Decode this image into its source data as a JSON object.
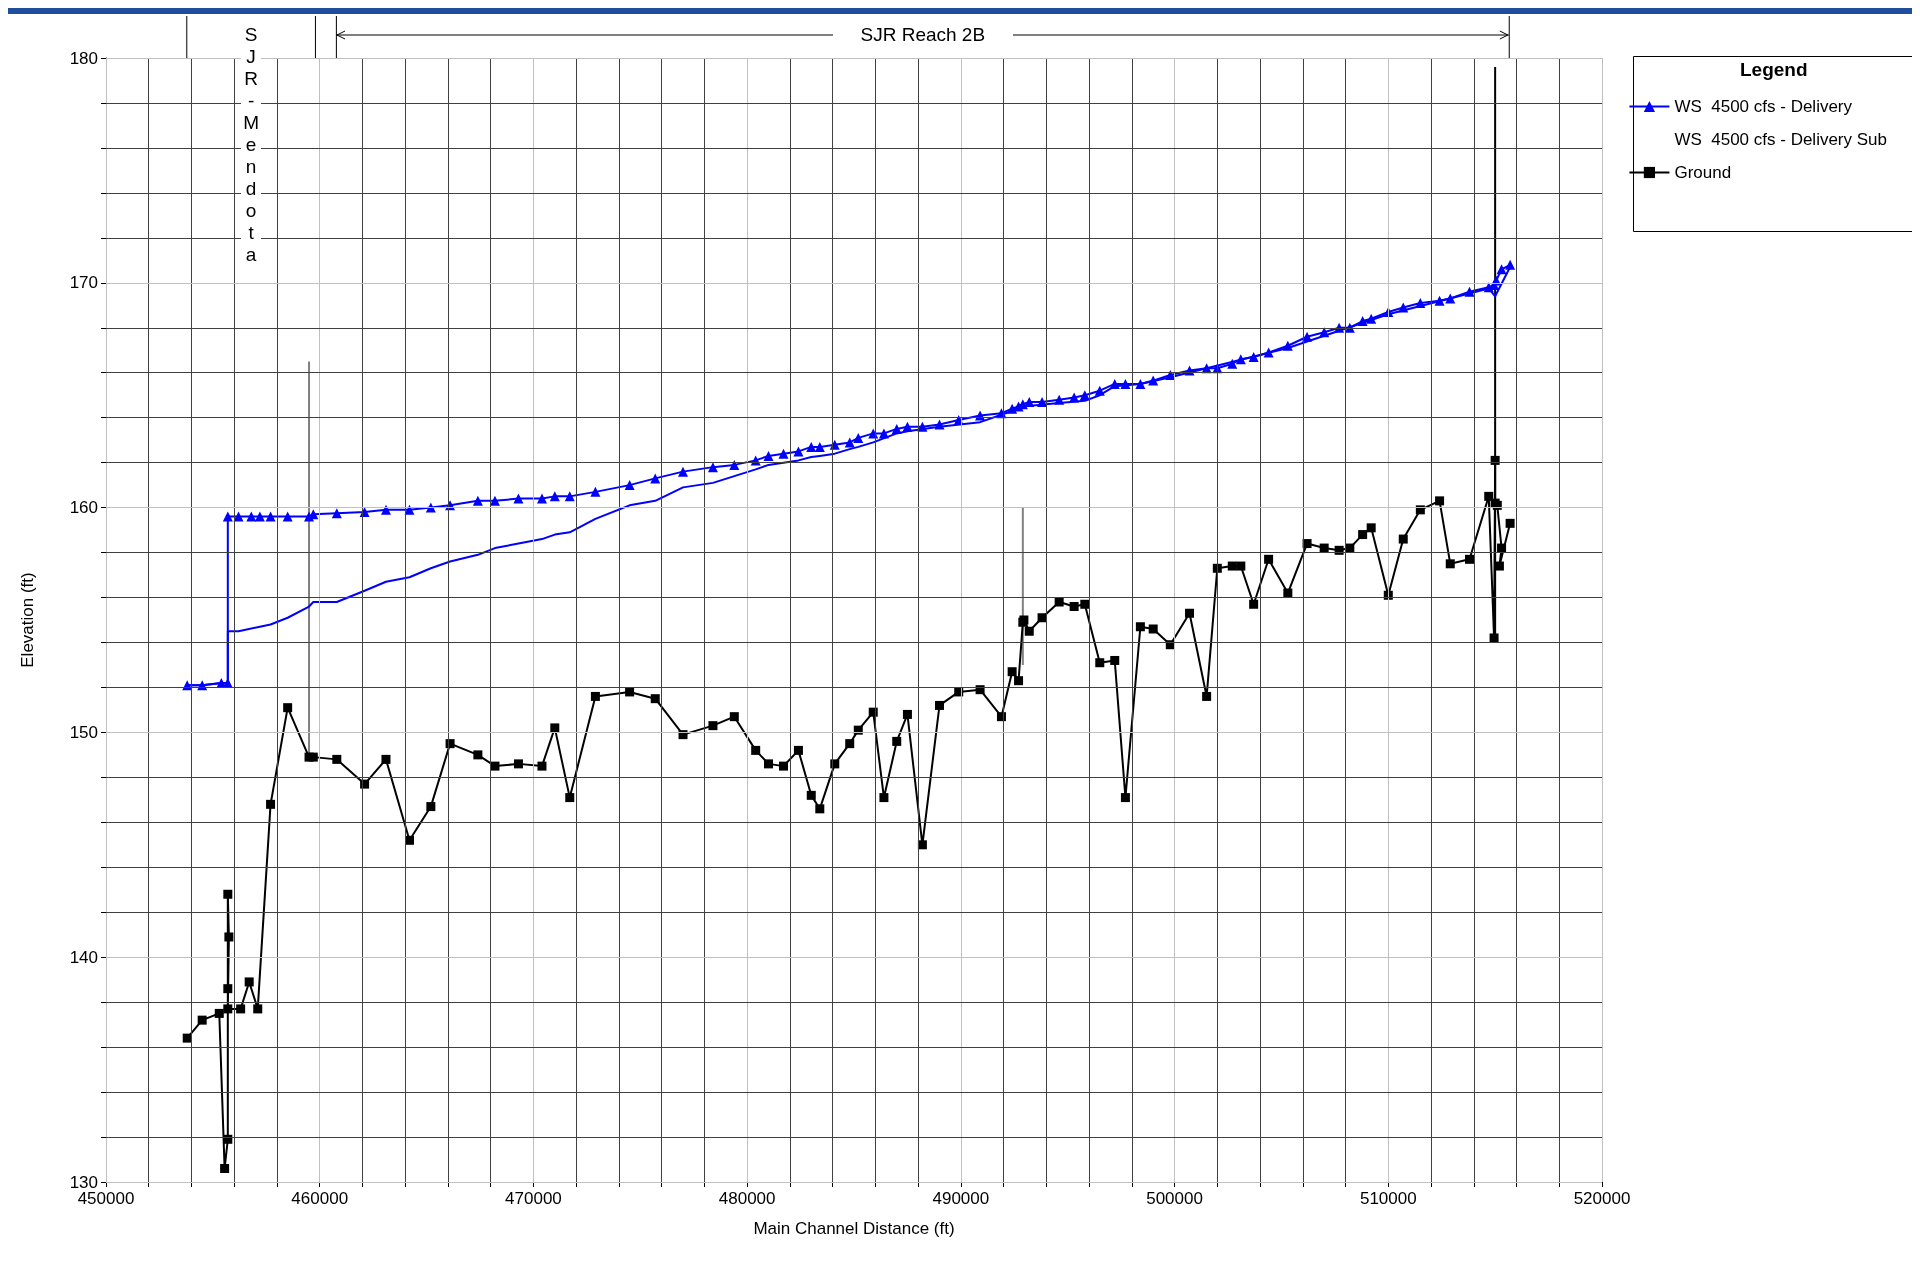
{
  "chart_data": {
    "type": "line",
    "xlabel": "Main Channel Distance (ft)",
    "ylabel": "Elevation (ft)",
    "legend_title": "Legend",
    "legend": "top right",
    "grid": true,
    "annotations": [
      "SJR-Mendota",
      "SJR Reach 2B"
    ],
    "xlim": [
      450000,
      520000
    ],
    "xticks": [
      450000,
      {
        "value": 452000,
        "label": null
      },
      {
        "value": 454000,
        "label": null
      },
      {
        "value": 456000,
        "label": null
      },
      {
        "value": 458000,
        "label": null
      },
      460000,
      {
        "value": 462000,
        "label": null
      },
      {
        "value": 464000,
        "label": null
      },
      {
        "value": 466000,
        "label": null
      },
      {
        "value": 468000,
        "label": null
      },
      470000,
      {
        "value": 472000,
        "label": null
      },
      {
        "value": 474000,
        "label": null
      },
      {
        "value": 476000,
        "label": null
      },
      {
        "value": 478000,
        "label": null
      },
      480000,
      {
        "value": 482000,
        "label": null
      },
      {
        "value": 484000,
        "label": null
      },
      {
        "value": 486000,
        "label": null
      },
      {
        "value": 488000,
        "label": null
      },
      490000,
      {
        "value": 492000,
        "label": null
      },
      {
        "value": 494000,
        "label": null
      },
      {
        "value": 496000,
        "label": null
      },
      {
        "value": 498000,
        "label": null
      },
      500000,
      {
        "value": 502000,
        "label": null
      },
      {
        "value": 504000,
        "label": null
      },
      {
        "value": 506000,
        "label": null
      },
      {
        "value": 508000,
        "label": null
      },
      510000,
      {
        "value": 512000,
        "label": null
      },
      {
        "value": 514000,
        "label": null
      },
      {
        "value": 516000,
        "label": null
      },
      {
        "value": 518000,
        "label": null
      },
      520000
    ],
    "ylim": [
      130,
      180
    ],
    "yticks": [
      130,
      {
        "value": 132,
        "label": null
      },
      {
        "value": 134,
        "label": null
      },
      {
        "value": 136,
        "label": null
      },
      {
        "value": 138,
        "label": null
      },
      140,
      {
        "value": 142,
        "label": null
      },
      {
        "value": 144,
        "label": null
      },
      {
        "value": 146,
        "label": null
      },
      {
        "value": 148,
        "label": null
      },
      150,
      {
        "value": 152,
        "label": null
      },
      {
        "value": 154,
        "label": null
      },
      {
        "value": 156,
        "label": null
      },
      {
        "value": 158,
        "label": null
      },
      160,
      {
        "value": 162,
        "label": null
      },
      {
        "value": 164,
        "label": null
      },
      {
        "value": 166,
        "label": null
      },
      {
        "value": 168,
        "label": null
      },
      170,
      {
        "value": 172,
        "label": null
      },
      {
        "value": 174,
        "label": null
      },
      {
        "value": 176,
        "label": null
      },
      {
        "value": 178,
        "label": null
      },
      180
    ],
    "series": [
      {
        "name": "WS  4500 cfs - Delivery",
        "color": "#0000ff",
        "marker": "triangle",
        "x": [
          453800,
          454500,
          455400,
          455700,
          455700,
          456200,
          456800,
          457200,
          457700,
          458500,
          459500,
          459700,
          460800,
          462100,
          463100,
          464200,
          465200,
          466100,
          467400,
          468200,
          469300,
          470400,
          471000,
          471700,
          472900,
          474500,
          475700,
          477000,
          478400,
          479400,
          480400,
          481000,
          481700,
          482400,
          483000,
          483400,
          484100,
          484800,
          485200,
          485900,
          486400,
          487000,
          487500,
          488200,
          489000,
          489900,
          490900,
          491900,
          492400,
          492700,
          492900,
          493200,
          493800,
          494600,
          495300,
          495800,
          496500,
          497200,
          497700,
          498400,
          499000,
          499800,
          500700,
          501500,
          502000,
          502700,
          503100,
          503700,
          504400,
          505300,
          506200,
          507000,
          507700,
          508200,
          508800,
          509200,
          510000,
          510700,
          511500,
          512400,
          512900,
          513800,
          514700,
          514950,
          515050,
          515300,
          515700
        ],
        "values": [
          152.1,
          152.1,
          152.2,
          152.2,
          159.6,
          159.6,
          159.6,
          159.6,
          159.6,
          159.6,
          159.6,
          159.7,
          159.75,
          159.8,
          159.9,
          159.9,
          160.0,
          160.1,
          160.3,
          160.3,
          160.4,
          160.4,
          160.5,
          160.5,
          160.7,
          161.0,
          161.3,
          161.6,
          161.8,
          161.9,
          162.1,
          162.3,
          162.4,
          162.5,
          162.7,
          162.7,
          162.8,
          162.9,
          163.1,
          163.3,
          163.3,
          163.5,
          163.6,
          163.6,
          163.7,
          163.9,
          164.1,
          164.2,
          164.4,
          164.5,
          164.6,
          164.7,
          164.7,
          164.8,
          164.9,
          165.0,
          165.2,
          165.5,
          165.5,
          165.5,
          165.65,
          165.9,
          166.1,
          166.2,
          166.2,
          166.4,
          166.6,
          166.7,
          166.9,
          167.2,
          167.6,
          167.8,
          168.0,
          168.0,
          168.3,
          168.4,
          168.7,
          168.9,
          169.1,
          169.2,
          169.3,
          169.6,
          169.8,
          169.9,
          170.1,
          170.6,
          170.8
        ]
      },
      {
        "name": "WS  4500 cfs - Delivery Sub",
        "color": "#0000ff",
        "marker": "none",
        "x": [
          453800,
          454500,
          455400,
          455700,
          455700,
          456200,
          457200,
          457700,
          458500,
          459500,
          459700,
          460800,
          462100,
          463100,
          464200,
          465200,
          466100,
          467400,
          468200,
          469300,
          470400,
          471000,
          471700,
          472900,
          474500,
          475700,
          477000,
          478400,
          479400,
          480400,
          481000,
          481700,
          482400,
          483000,
          483400,
          484100,
          484800,
          485200,
          485900,
          487000,
          487500,
          489000,
          490900,
          492400,
          492900,
          494600,
          495800,
          496500,
          497200,
          498400,
          499800,
          501500,
          505300,
          510000,
          514700,
          515000,
          515700
        ],
        "values": [
          152.1,
          152.1,
          152.2,
          152.2,
          154.5,
          154.5,
          154.7,
          154.8,
          155.1,
          155.6,
          155.8,
          155.8,
          156.3,
          156.7,
          156.9,
          157.3,
          157.6,
          157.9,
          158.2,
          158.4,
          158.6,
          158.8,
          158.9,
          159.5,
          160.1,
          160.3,
          160.9,
          161.1,
          161.4,
          161.7,
          161.9,
          162.0,
          162.1,
          162.25,
          162.3,
          162.4,
          162.6,
          162.7,
          162.9,
          163.3,
          163.4,
          163.6,
          163.8,
          164.3,
          164.5,
          164.65,
          164.75,
          165.0,
          165.4,
          165.5,
          165.8,
          166.2,
          167.1,
          168.6,
          169.75,
          169.4,
          170.7
        ]
      },
      {
        "name": "Ground",
        "color": "#000000",
        "marker": "square",
        "x": [
          453800,
          454500,
          455300,
          455550,
          455700,
          455700,
          455700,
          455750,
          455700,
          456300,
          456700,
          457100,
          457700,
          458500,
          459500,
          459700,
          460800,
          462100,
          463100,
          464200,
          465200,
          466100,
          467400,
          468200,
          469300,
          470400,
          471000,
          471700,
          472900,
          474500,
          475700,
          477000,
          478400,
          479400,
          480400,
          481000,
          481700,
          482400,
          483000,
          483400,
          484100,
          484800,
          485200,
          485900,
          486400,
          487000,
          487500,
          488200,
          489000,
          489900,
          490900,
          491900,
          492400,
          492700,
          492900,
          492950,
          493200,
          493800,
          494600,
          495300,
          495800,
          496500,
          497200,
          497700,
          498400,
          499000,
          499800,
          500700,
          501500,
          502000,
          502700,
          503100,
          503700,
          504400,
          505300,
          506200,
          507000,
          507700,
          508200,
          508800,
          509200,
          510000,
          510700,
          511500,
          512400,
          512900,
          513800,
          514700,
          514950,
          515000,
          515000,
          515100,
          515300,
          515200,
          515700
        ],
        "values": [
          136.4,
          137.2,
          137.5,
          130.6,
          131.9,
          138.6,
          142.8,
          140.9,
          137.7,
          137.7,
          138.9,
          137.7,
          146.8,
          151.1,
          148.9,
          148.9,
          148.8,
          147.7,
          148.8,
          145.2,
          146.7,
          149.5,
          149.0,
          148.5,
          148.6,
          148.5,
          150.2,
          147.1,
          151.6,
          151.8,
          151.5,
          149.9,
          150.3,
          150.7,
          149.2,
          148.6,
          148.5,
          149.2,
          147.2,
          146.6,
          148.6,
          149.5,
          150.1,
          150.9,
          147.1,
          149.6,
          150.8,
          145.0,
          151.2,
          151.8,
          151.9,
          150.7,
          152.7,
          152.3,
          154.9,
          155.0,
          154.5,
          155.1,
          155.8,
          155.6,
          155.7,
          153.1,
          153.2,
          147.1,
          154.7,
          154.6,
          153.9,
          155.3,
          151.6,
          157.3,
          157.4,
          157.4,
          155.7,
          157.7,
          156.2,
          158.4,
          158.2,
          158.1,
          158.2,
          158.8,
          159.1,
          156.1,
          158.6,
          159.9,
          160.3,
          157.5,
          157.7,
          160.5,
          154.2,
          162.1,
          160.2,
          160.1,
          158.2,
          157.4,
          159.3
        ]
      },
      {
        "color": "#808080",
        "marker": "none",
        "x": [
          459500,
          459500
        ],
        "values": [
          149,
          166.5
        ]
      },
      {
        "color": "#808080",
        "marker": "none",
        "x": [
          492900,
          492900
        ],
        "values": [
          153,
          160
        ]
      },
      {
        "color": "#000000",
        "marker": "none",
        "x": [
          515000,
          515000
        ],
        "values": [
          154,
          179.6
        ]
      }
    ]
  }
}
